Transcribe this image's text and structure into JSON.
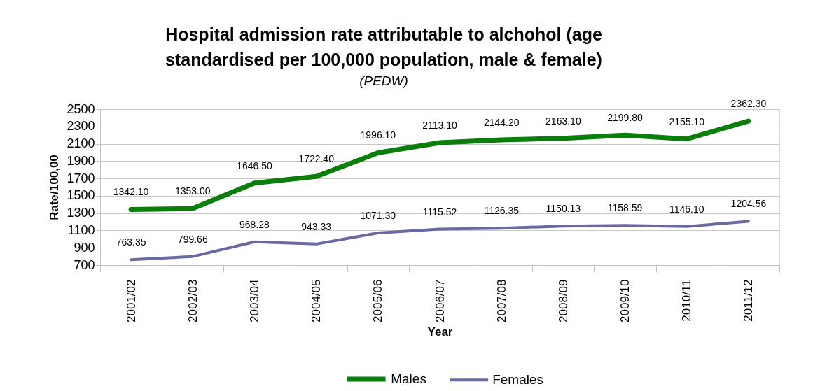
{
  "chart_data": {
    "type": "line",
    "title": "Hospital admission rate attributable to alchohol (age standardised per 100,000 population, male & female)",
    "subtitle": "(PEDW)",
    "xlabel": "Year",
    "ylabel": "Rate/100,00",
    "categories": [
      "2001/02",
      "2002/03",
      "2003/04",
      "2004/05",
      "2005/06",
      "2006/07",
      "2007/08",
      "2008/09",
      "2009/10",
      "2010/11",
      "2011/12"
    ],
    "series": [
      {
        "name": "Males",
        "color": "#0a7d0a",
        "values": [
          1342.1,
          1353.0,
          1646.5,
          1722.4,
          1996.1,
          2113.1,
          2144.2,
          2163.1,
          2199.8,
          2155.1,
          2362.3
        ],
        "value_labels": [
          "1342.10",
          "1353.00",
          "1646.50",
          "1722.40",
          "1996.10",
          "2113.10",
          "2144.20",
          "2163.10",
          "2199.80",
          "2155.10",
          "2362.30"
        ]
      },
      {
        "name": "Females",
        "color": "#6a6aa2",
        "values": [
          763.35,
          799.66,
          968.28,
          943.33,
          1071.3,
          1115.52,
          1126.35,
          1150.13,
          1158.59,
          1146.1,
          1204.56
        ],
        "value_labels": [
          "763.35",
          "799.66",
          "968.28",
          "943.33",
          "1071.30",
          "1115.52",
          "1126.35",
          "1150.13",
          "1158.59",
          "1146.10",
          "1204.56"
        ]
      }
    ],
    "ylim": [
      700,
      2500
    ],
    "yticks": [
      700,
      900,
      1100,
      1300,
      1500,
      1700,
      1900,
      2100,
      2300,
      2500
    ],
    "grid": "y",
    "legend": "bottom"
  }
}
